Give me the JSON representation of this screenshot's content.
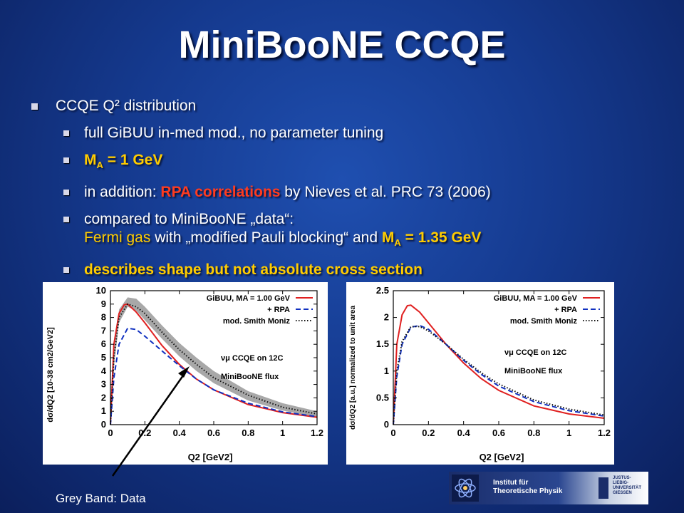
{
  "slide": {
    "title": "MiniBooNE CCQE",
    "bullet_main": "CCQE Q² distribution",
    "sub1": "full GiBUU in-med mod., no parameter tuning",
    "sub2_pre": "M",
    "sub2_sub": "A",
    "sub2_post": " = 1 GeV",
    "sub3_a": "in addition: ",
    "sub3_b": "RPA correlations",
    "sub3_c": " by Nieves et al. PRC 73 (2006)",
    "sub4_line1": "compared to MiniBooNE „data“:",
    "sub4_a": "Fermi gas",
    "sub4_b": " with „modified Pauli blocking“ and ",
    "sub4_c": "M",
    "sub4_csub": "A",
    "sub4_d": " = 1.35 GeV",
    "sub5": "describes shape but not absolute cross section",
    "caption": "Grey Band: Data",
    "logo_line1": "Institut für",
    "logo_line2": "Theoretische Physik",
    "logo_uni": "JUSTUS-LIEBIG-UNIVERSITÄT GIESSEN"
  },
  "chart_data": [
    {
      "type": "line",
      "xlabel": "Q2 [GeV2]",
      "ylabel": "dσ/dQ2 [10-38 cm2/GeV2]",
      "xlim": [
        0,
        1.2
      ],
      "ylim": [
        0,
        10
      ],
      "xticks": [
        "0",
        "0.2",
        "0.4",
        "0.6",
        "0.8",
        "1",
        "1.2"
      ],
      "yticks": [
        "0",
        "1",
        "2",
        "3",
        "4",
        "5",
        "6",
        "7",
        "8",
        "9",
        "10"
      ],
      "legend_placement": "top-right",
      "legend": [
        "GiBUU, MA = 1.00 GeV",
        "+ RPA",
        "mod. Smith Moniz"
      ],
      "annotation1": "νμ CCQE on 12C",
      "annotation2": "MiniBooNE flux",
      "band": {
        "name": "Grey Band: Data",
        "x": [
          0,
          0.02,
          0.05,
          0.1,
          0.15,
          0.2,
          0.3,
          0.4,
          0.5,
          0.6,
          0.8,
          1.0,
          1.2
        ],
        "y_low": [
          0,
          4.3,
          7.6,
          8.8,
          8.5,
          7.8,
          6.4,
          5.1,
          4.0,
          3.1,
          1.8,
          1.05,
          0.55
        ],
        "y_high": [
          0,
          5.3,
          8.6,
          9.5,
          9.4,
          8.8,
          7.4,
          6.1,
          5.0,
          4.0,
          2.5,
          1.6,
          1.0
        ]
      },
      "series": [
        {
          "name": "GiBUU, MA = 1.00 GeV",
          "color": "#e02020",
          "dash": "solid",
          "x": [
            0,
            0.02,
            0.05,
            0.08,
            0.1,
            0.15,
            0.2,
            0.3,
            0.4,
            0.5,
            0.6,
            0.8,
            1.0,
            1.2
          ],
          "y": [
            0,
            6.0,
            8.3,
            8.95,
            9.0,
            8.4,
            7.6,
            5.9,
            4.5,
            3.4,
            2.6,
            1.5,
            0.9,
            0.55
          ]
        },
        {
          "name": "+ RPA",
          "color": "#1030c0",
          "dash": "dashed",
          "x": [
            0,
            0.02,
            0.05,
            0.1,
            0.15,
            0.2,
            0.3,
            0.4,
            0.5,
            0.6,
            0.8,
            1.0,
            1.2
          ],
          "y": [
            0,
            3.5,
            6.0,
            7.2,
            7.1,
            6.6,
            5.5,
            4.4,
            3.4,
            2.6,
            1.6,
            0.95,
            0.6
          ]
        },
        {
          "name": "mod. Smith Moniz",
          "color": "#111111",
          "dash": "dotted",
          "x": [
            0,
            0.02,
            0.05,
            0.1,
            0.15,
            0.2,
            0.3,
            0.4,
            0.5,
            0.6,
            0.8,
            1.0,
            1.2
          ],
          "y": [
            0,
            5.0,
            8.0,
            9.0,
            8.8,
            8.3,
            6.9,
            5.6,
            4.5,
            3.5,
            2.2,
            1.3,
            0.8
          ]
        }
      ]
    },
    {
      "type": "line",
      "xlabel": "Q2 [GeV2]",
      "ylabel": "dσ/dQ2 [a.u.] normalized to unit area",
      "xlim": [
        0,
        1.2
      ],
      "ylim": [
        0,
        2.5
      ],
      "xticks": [
        "0",
        "0.2",
        "0.4",
        "0.6",
        "0.8",
        "1",
        "1.2"
      ],
      "yticks": [
        "0",
        "0.5",
        "1",
        "1.5",
        "2",
        "2.5"
      ],
      "legend_placement": "top-right",
      "legend": [
        "GiBUU, MA = 1.00 GeV",
        "+ RPA",
        "mod. Smith Moniz"
      ],
      "annotation1": "νμ CCQE on 12C",
      "annotation2": "MiniBooNE flux",
      "series": [
        {
          "name": "GiBUU, MA = 1.00 GeV",
          "color": "#e02020",
          "dash": "solid",
          "x": [
            0,
            0.02,
            0.05,
            0.08,
            0.1,
            0.15,
            0.2,
            0.3,
            0.4,
            0.5,
            0.6,
            0.8,
            1.0,
            1.2
          ],
          "y": [
            0,
            1.5,
            2.05,
            2.22,
            2.23,
            2.1,
            1.9,
            1.5,
            1.15,
            0.86,
            0.64,
            0.35,
            0.2,
            0.12
          ]
        },
        {
          "name": "+ RPA",
          "color": "#1030c0",
          "dash": "dashed",
          "x": [
            0,
            0.02,
            0.05,
            0.1,
            0.15,
            0.2,
            0.3,
            0.4,
            0.5,
            0.6,
            0.8,
            1.0,
            1.2
          ],
          "y": [
            0,
            0.9,
            1.5,
            1.82,
            1.85,
            1.78,
            1.5,
            1.2,
            0.94,
            0.72,
            0.43,
            0.26,
            0.16
          ]
        },
        {
          "name": "mod. Smith Moniz",
          "color": "#111111",
          "dash": "dotted",
          "x": [
            0,
            0.02,
            0.05,
            0.1,
            0.15,
            0.2,
            0.3,
            0.4,
            0.5,
            0.6,
            0.8,
            1.0,
            1.2
          ],
          "y": [
            0,
            1.0,
            1.55,
            1.83,
            1.83,
            1.75,
            1.5,
            1.22,
            0.97,
            0.76,
            0.46,
            0.29,
            0.18
          ]
        }
      ]
    }
  ]
}
